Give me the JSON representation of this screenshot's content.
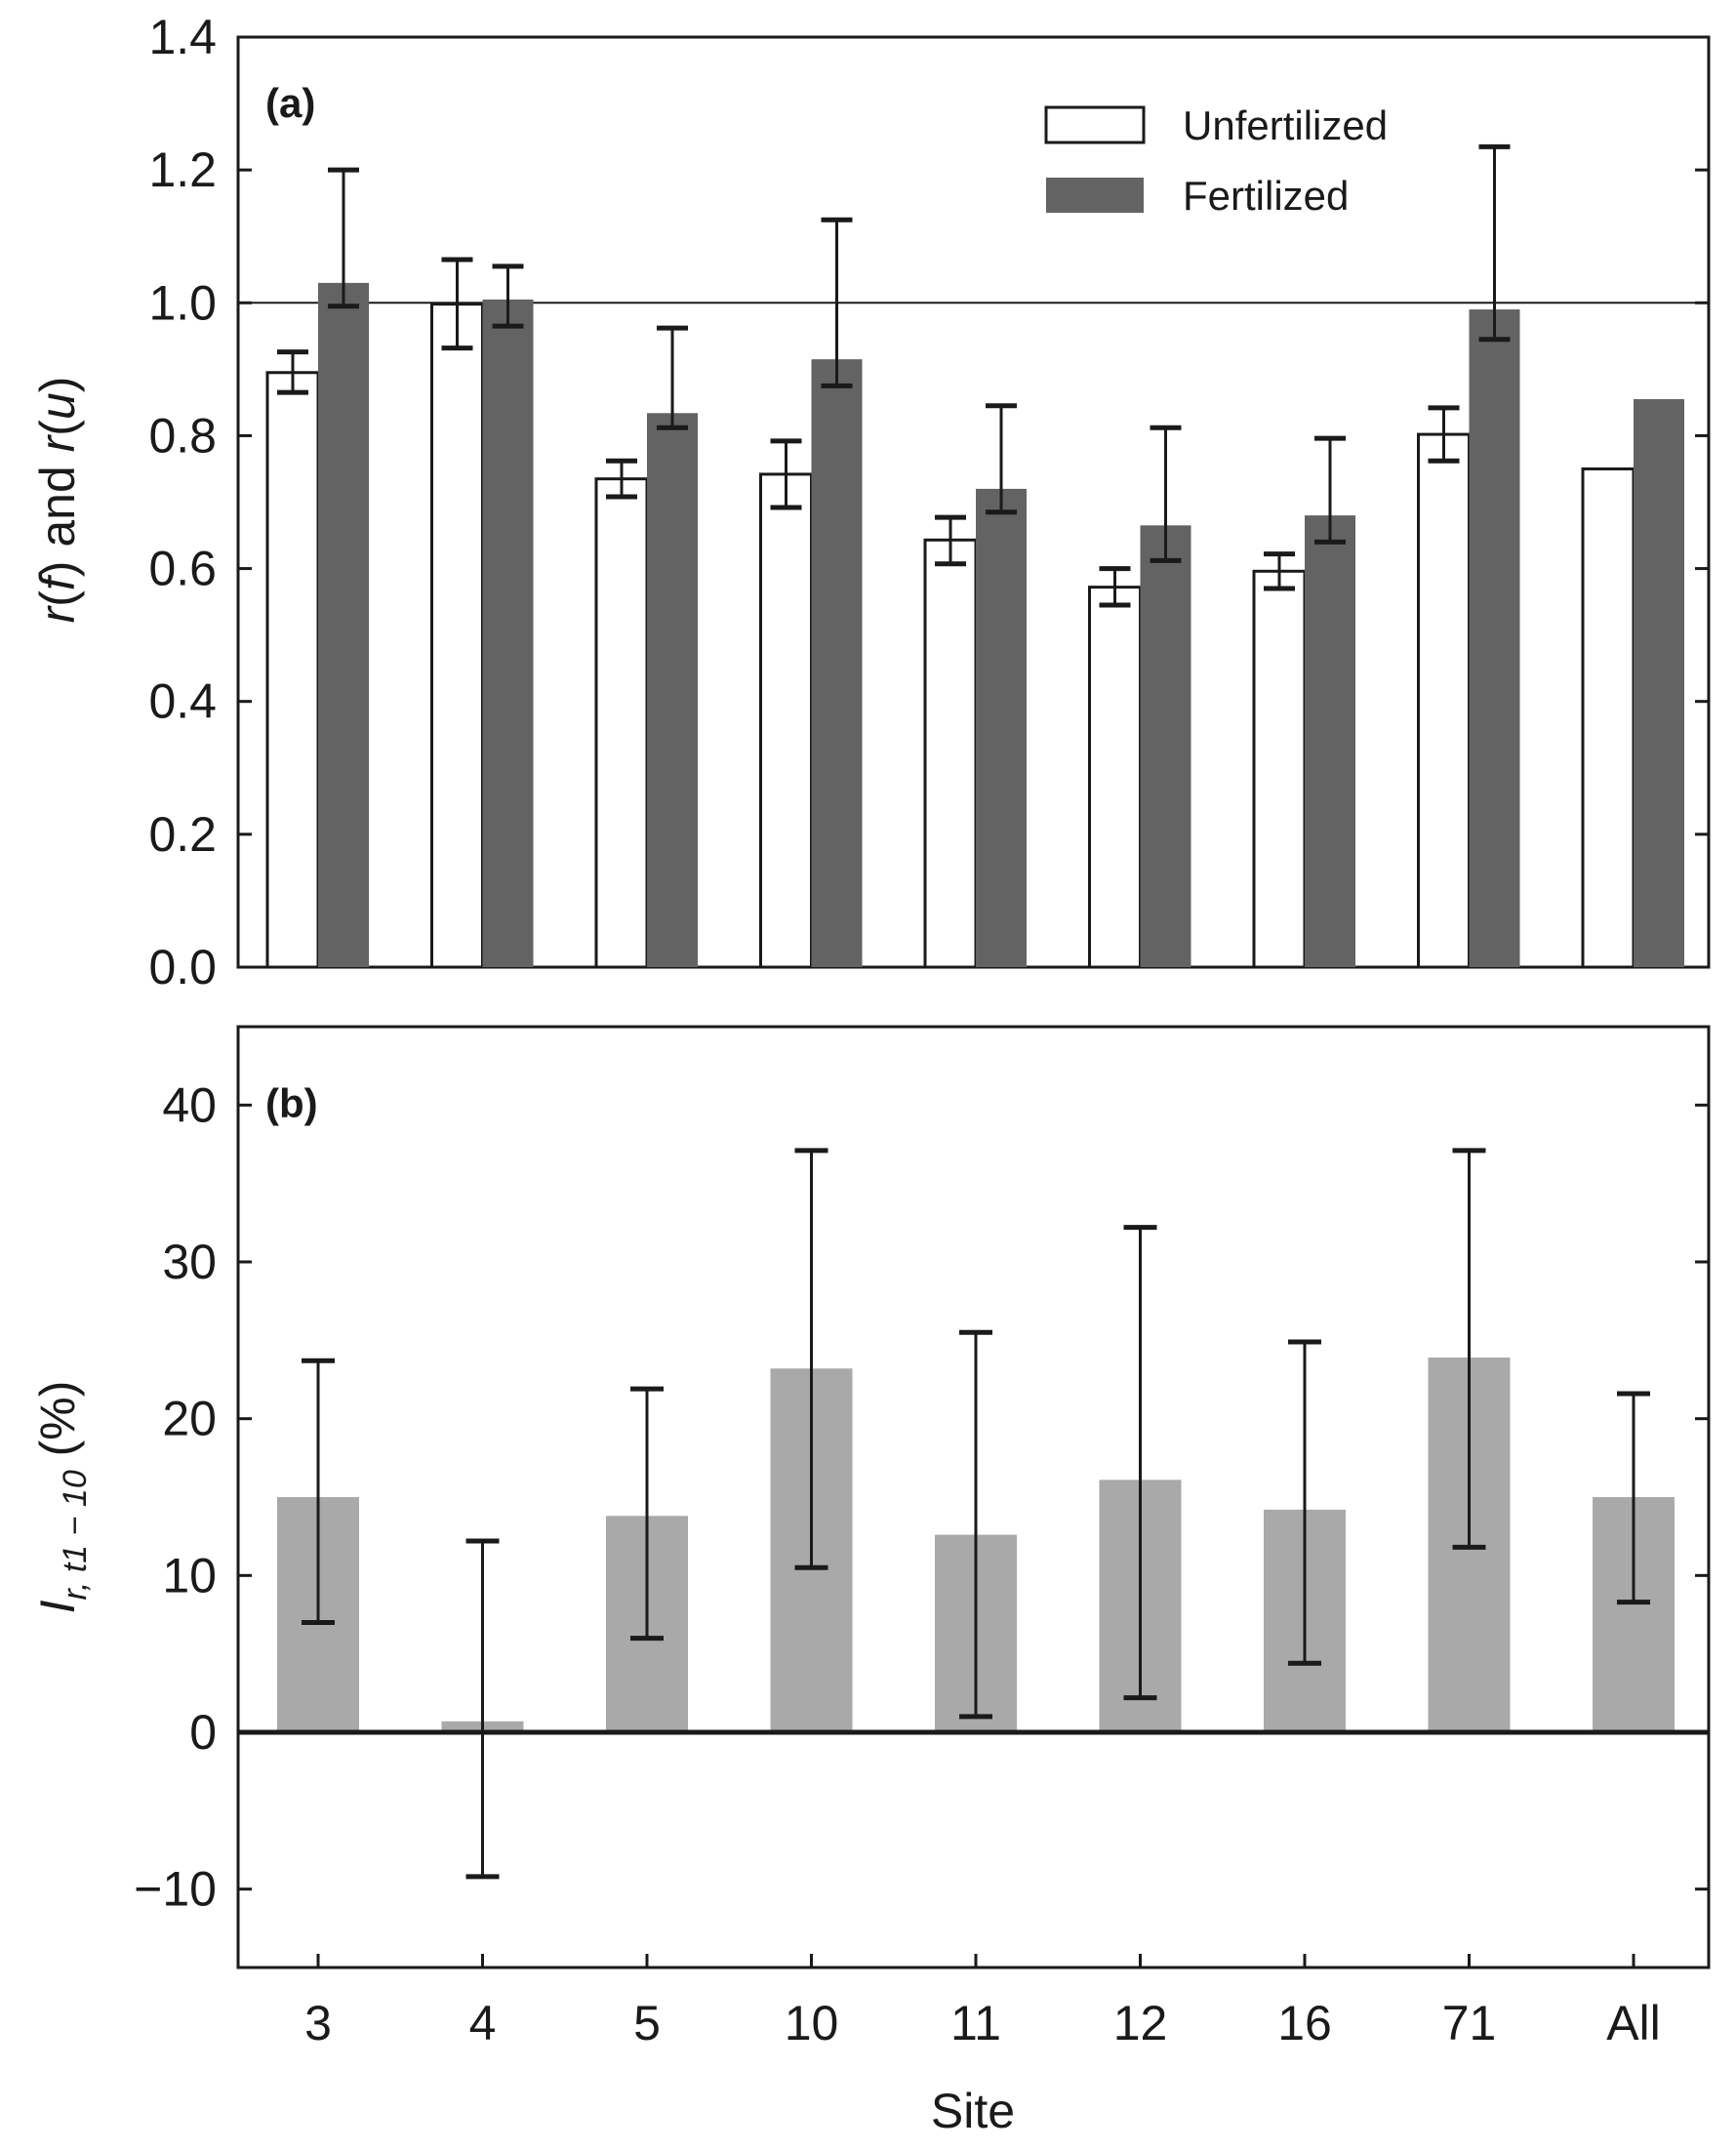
{
  "colors": {
    "unfertilized": "#ffffff",
    "fertilized": "#636363",
    "ratio": "#a9a9a9",
    "stroke": "#1a1a1a"
  },
  "chart_data": [
    {
      "type": "bar",
      "panel": "(a)",
      "ylabel": {
        "r1": "r",
        "f": "f",
        "and": "and",
        "r2": "r",
        "u": "u"
      },
      "xlabel": "",
      "ylim": [
        0,
        1.4
      ],
      "yticks": [
        "0.0",
        "0.2",
        "0.4",
        "0.6",
        "0.8",
        "1.0",
        "1.2",
        "1.4"
      ],
      "reference_line": 1.0,
      "legend": {
        "position": "top-right",
        "entries": [
          "Unfertilized",
          "Fertilized"
        ]
      },
      "categories": [
        "3",
        "4",
        "5",
        "10",
        "11",
        "12",
        "16",
        "71",
        "All"
      ],
      "series": [
        {
          "name": "Unfertilized",
          "values": [
            0.895,
            0.998,
            0.735,
            0.742,
            0.643,
            0.572,
            0.596,
            0.802,
            0.75
          ],
          "err_low": [
            0.865,
            0.932,
            0.708,
            0.692,
            0.607,
            0.545,
            0.57,
            0.762,
            null
          ],
          "err_high": [
            0.926,
            1.065,
            0.762,
            0.792,
            0.677,
            0.6,
            0.622,
            0.842,
            null
          ]
        },
        {
          "name": "Fertilized",
          "values": [
            1.03,
            1.005,
            0.834,
            0.915,
            0.72,
            0.665,
            0.68,
            0.99,
            0.855
          ],
          "err_low": [
            0.995,
            0.965,
            0.812,
            0.875,
            0.685,
            0.612,
            0.64,
            0.945,
            null
          ],
          "err_high": [
            1.2,
            1.055,
            0.962,
            1.125,
            0.845,
            0.812,
            0.796,
            1.235,
            null
          ]
        }
      ]
    },
    {
      "type": "bar",
      "panel": "(b)",
      "ylabel": {
        "I": "I",
        "sub": "r, t1 − 10",
        "rest": "(%)"
      },
      "xlabel": "Site",
      "ylim": [
        -15,
        45
      ],
      "yticks": [
        "−10",
        "0",
        "10",
        "20",
        "30",
        "40"
      ],
      "categories": [
        "3",
        "4",
        "5",
        "10",
        "11",
        "12",
        "16",
        "71",
        "All"
      ],
      "series": [
        {
          "name": "Ir,t1-10",
          "values": [
            15.0,
            0.7,
            13.8,
            23.2,
            12.6,
            16.1,
            14.2,
            23.9,
            15.0
          ],
          "err_low": [
            7.0,
            -9.2,
            6.0,
            10.5,
            1.0,
            2.2,
            4.4,
            11.8,
            8.3
          ],
          "err_high": [
            23.7,
            12.2,
            21.9,
            37.1,
            25.5,
            32.2,
            24.9,
            37.1,
            21.6
          ]
        }
      ]
    }
  ]
}
